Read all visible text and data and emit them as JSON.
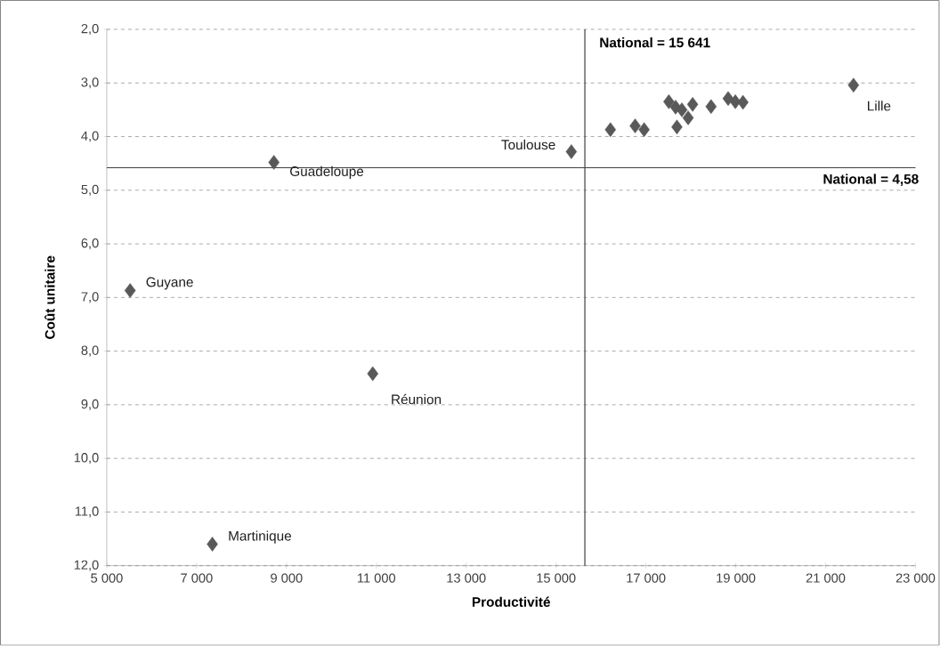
{
  "chart_data": {
    "type": "scatter",
    "xlabel": "Productivité",
    "ylabel": "Coût unitaire",
    "series": [
      {
        "color": "#595959",
        "x": [
          5520,
          7350,
          8720,
          10920,
          15340,
          21620,
          16210,
          16760,
          16960,
          17690,
          17510,
          17660,
          17800,
          17940,
          18040,
          18450,
          18830,
          18990,
          19160
        ],
        "values": [
          6.87,
          11.6,
          4.48,
          8.42,
          4.28,
          3.04,
          3.87,
          3.8,
          3.87,
          3.82,
          3.35,
          3.45,
          3.5,
          3.65,
          3.4,
          3.44,
          3.29,
          3.35,
          3.36
        ]
      }
    ],
    "marker": "diamond",
    "grid": "y",
    "xlim": [
      5000,
      23000
    ],
    "xticks": [
      {
        "value": 5000,
        "label": "5 000"
      },
      {
        "value": 7000,
        "label": "7 000"
      },
      {
        "value": 9000,
        "label": "9 000"
      },
      {
        "value": 11000,
        "label": "11 000"
      },
      {
        "value": 13000,
        "label": "13 000"
      },
      {
        "value": 15000,
        "label": "15 000"
      },
      {
        "value": 17000,
        "label": "17 000"
      },
      {
        "value": 19000,
        "label": "19 000"
      },
      {
        "value": 21000,
        "label": "21 000"
      },
      {
        "value": 23000,
        "label": "23 000"
      }
    ],
    "ylim": [
      12,
      2
    ],
    "yticks": [
      {
        "value": 2,
        "label": "2,0"
      },
      {
        "value": 3,
        "label": "3,0"
      },
      {
        "value": 4,
        "label": "4,0"
      },
      {
        "value": 5,
        "label": "5,0"
      },
      {
        "value": 6,
        "label": "6,0"
      },
      {
        "value": 7,
        "label": "7,0"
      },
      {
        "value": 8,
        "label": "8,0"
      },
      {
        "value": 9,
        "label": "9,0"
      },
      {
        "value": 10,
        "label": "10,0"
      },
      {
        "value": 11,
        "label": "11,0"
      },
      {
        "value": 12,
        "label": "12,0"
      }
    ],
    "ref_lines": [
      {
        "axis": "x",
        "value": 15641,
        "label": "National = 15 641",
        "color": "#404040"
      },
      {
        "axis": "y",
        "value": 4.58,
        "label": "National = 4,58",
        "color": "#404040"
      }
    ],
    "annotations": [
      {
        "text": "Guyane",
        "x": 5520,
        "y": 6.87
      },
      {
        "text": "Martinique",
        "x": 7350,
        "y": 11.6
      },
      {
        "text": "Guadeloupe",
        "x": 8720,
        "y": 4.48
      },
      {
        "text": "Réunion",
        "x": 10920,
        "y": 8.42
      },
      {
        "text": "Toulouse",
        "x": 15340,
        "y": 4.28
      },
      {
        "text": "Lille",
        "x": 21620,
        "y": 3.04
      }
    ]
  }
}
